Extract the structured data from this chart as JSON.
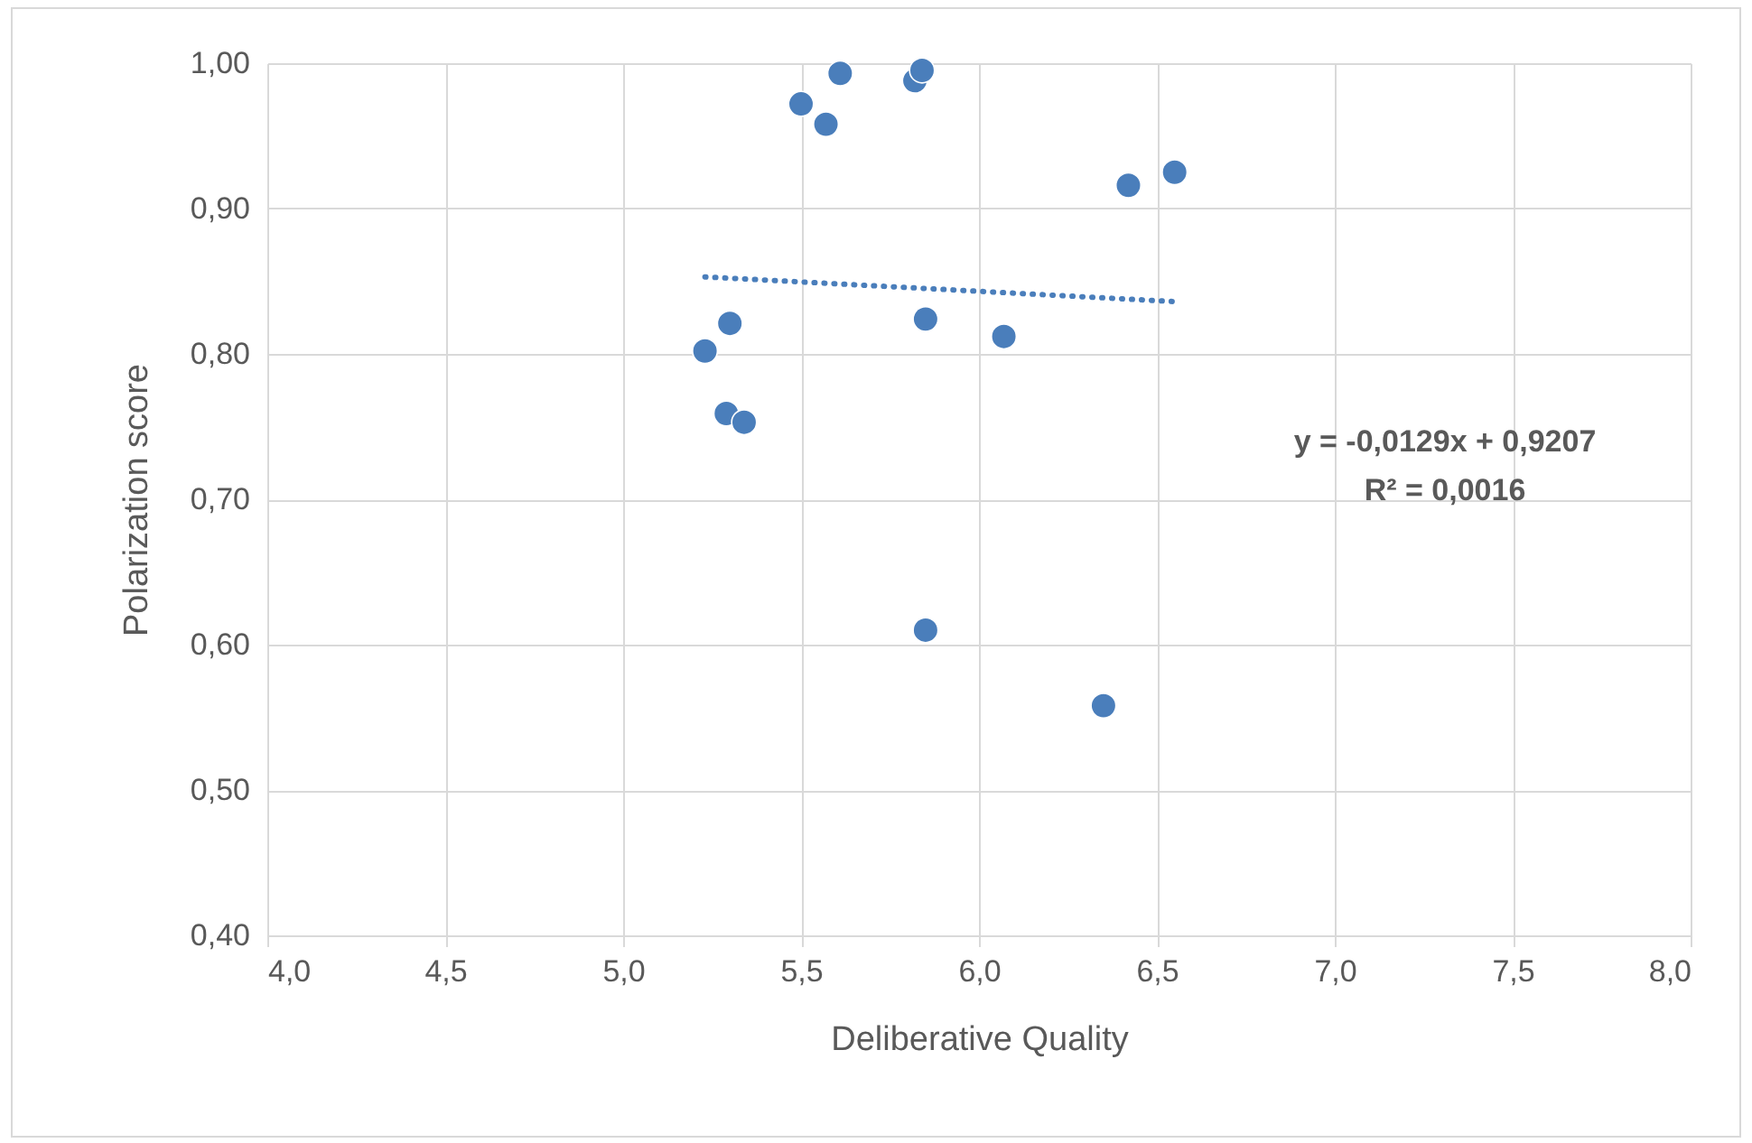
{
  "chart_data": {
    "type": "scatter",
    "xlabel": "Deliberative Quality",
    "ylabel": "Polarization score",
    "xlim": [
      4.0,
      8.0
    ],
    "ylim": [
      0.4,
      1.0
    ],
    "xticks": [
      {
        "value": 4.0,
        "label": "4,0"
      },
      {
        "value": 4.5,
        "label": "4,5"
      },
      {
        "value": 5.0,
        "label": "5,0"
      },
      {
        "value": 5.5,
        "label": "5,5"
      },
      {
        "value": 6.0,
        "label": "6,0"
      },
      {
        "value": 6.5,
        "label": "6,5"
      },
      {
        "value": 7.0,
        "label": "7,0"
      },
      {
        "value": 7.5,
        "label": "7,5"
      },
      {
        "value": 8.0,
        "label": "8,0"
      }
    ],
    "yticks": [
      {
        "value": 0.4,
        "label": "0,40"
      },
      {
        "value": 0.5,
        "label": "0,50"
      },
      {
        "value": 0.6,
        "label": "0,60"
      },
      {
        "value": 0.7,
        "label": "0,70"
      },
      {
        "value": 0.8,
        "label": "0,80"
      },
      {
        "value": 0.9,
        "label": "0,90"
      },
      {
        "value": 1.0,
        "label": "1,00"
      }
    ],
    "grid": true,
    "annotations": [
      "y = -0,0129x + 0,9207",
      "R² = 0,0016"
    ],
    "series": [
      {
        "type": "scatter",
        "color": "#4a7ebb",
        "marker": "circle",
        "x": [
          5.61,
          5.5,
          5.57,
          5.82,
          5.84,
          6.42,
          6.55,
          5.23,
          5.3,
          5.29,
          5.34,
          5.85,
          6.07,
          5.85,
          6.35
        ],
        "values": [
          0.993,
          0.972,
          0.958,
          0.988,
          0.995,
          0.916,
          0.925,
          0.802,
          0.821,
          0.759,
          0.753,
          0.824,
          0.812,
          0.61,
          0.558
        ]
      },
      {
        "type": "line",
        "color": "#4a7ebb",
        "line_style": "dotted",
        "marker": "none",
        "x": [
          5.23,
          6.55
        ],
        "values": [
          0.853,
          0.836
        ]
      }
    ]
  }
}
